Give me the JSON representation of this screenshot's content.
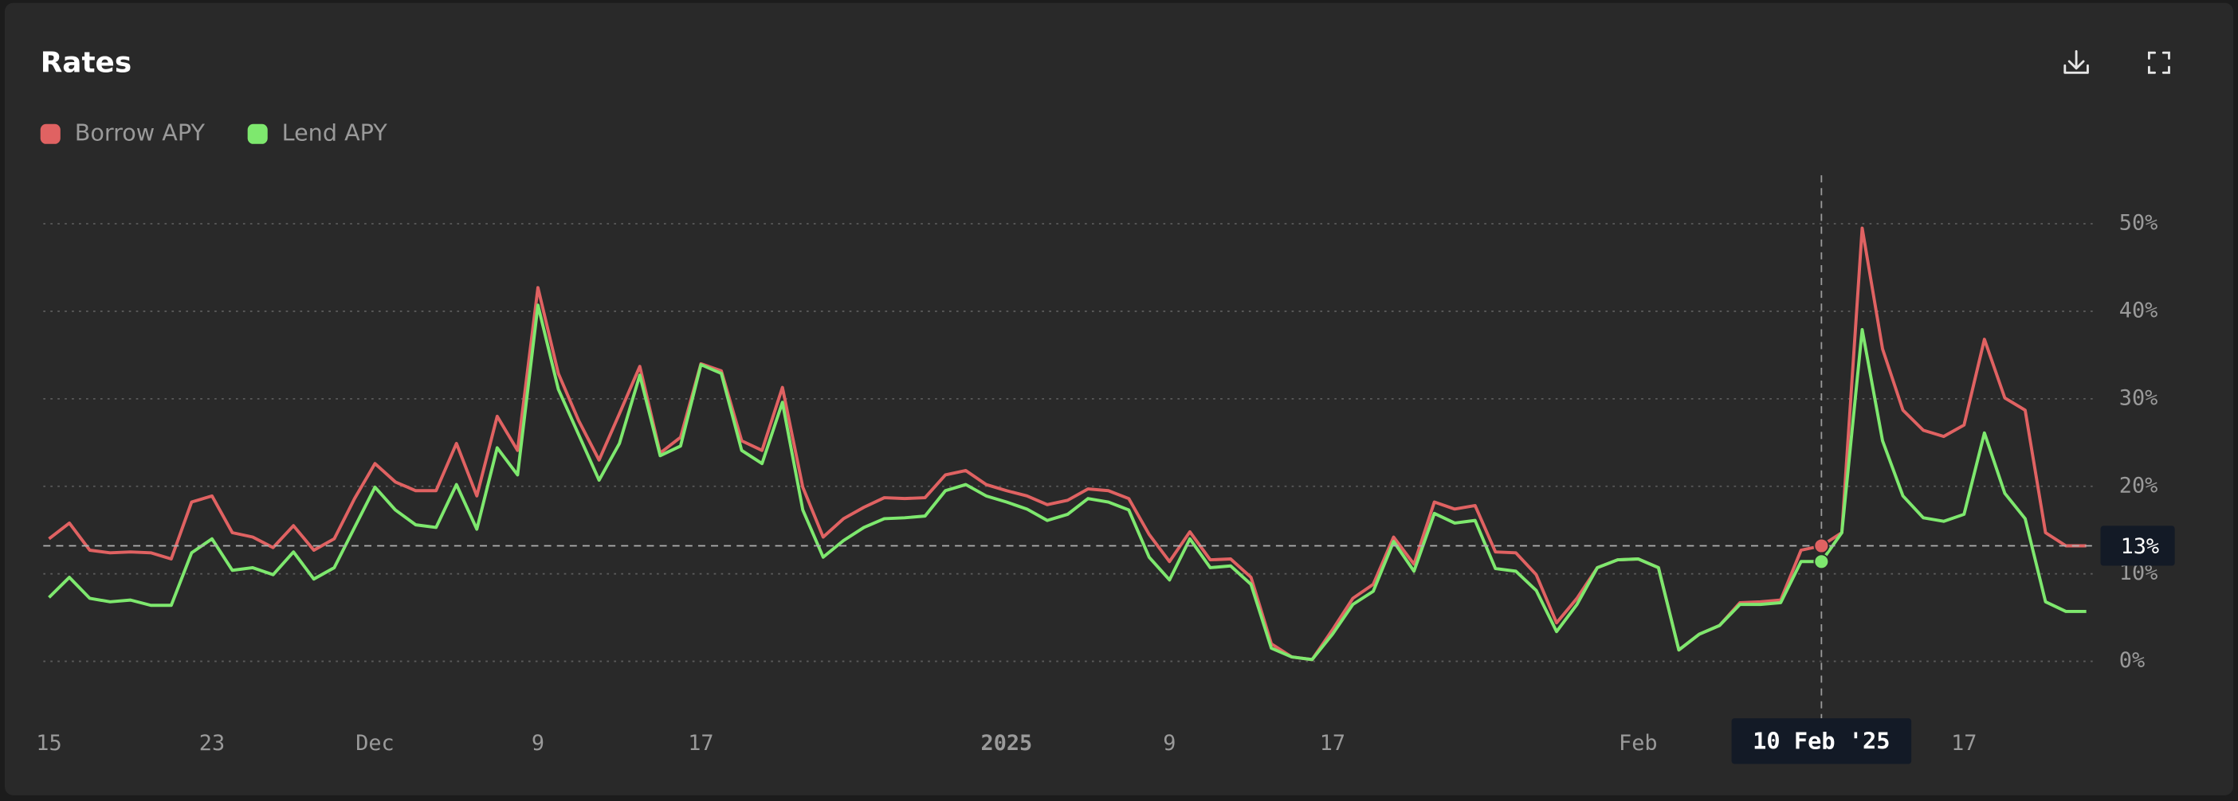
{
  "chart_data": {
    "type": "line",
    "title": "Rates",
    "x": [
      "2024-11-15",
      "2024-11-16",
      "2024-11-17",
      "2024-11-18",
      "2024-11-19",
      "2024-11-20",
      "2024-11-21",
      "2024-11-22",
      "2024-11-23",
      "2024-11-24",
      "2024-11-25",
      "2024-11-26",
      "2024-11-27",
      "2024-11-28",
      "2024-11-29",
      "2024-11-30",
      "2024-12-01",
      "2024-12-02",
      "2024-12-03",
      "2024-12-04",
      "2024-12-05",
      "2024-12-06",
      "2024-12-07",
      "2024-12-08",
      "2024-12-09",
      "2024-12-10",
      "2024-12-11",
      "2024-12-12",
      "2024-12-13",
      "2024-12-14",
      "2024-12-15",
      "2024-12-16",
      "2024-12-17",
      "2024-12-18",
      "2024-12-19",
      "2024-12-20",
      "2024-12-21",
      "2024-12-22",
      "2024-12-23",
      "2024-12-24",
      "2024-12-25",
      "2024-12-26",
      "2024-12-27",
      "2024-12-28",
      "2024-12-29",
      "2024-12-30",
      "2024-12-31",
      "2025-01-01",
      "2025-01-02",
      "2025-01-03",
      "2025-01-04",
      "2025-01-05",
      "2025-01-06",
      "2025-01-07",
      "2025-01-08",
      "2025-01-09",
      "2025-01-10",
      "2025-01-11",
      "2025-01-12",
      "2025-01-13",
      "2025-01-14",
      "2025-01-15",
      "2025-01-16",
      "2025-01-17",
      "2025-01-18",
      "2025-01-19",
      "2025-01-20",
      "2025-01-21",
      "2025-01-22",
      "2025-01-23",
      "2025-01-24",
      "2025-01-25",
      "2025-01-26",
      "2025-01-27",
      "2025-01-28",
      "2025-01-29",
      "2025-01-30",
      "2025-01-31",
      "2025-02-01",
      "2025-02-02",
      "2025-02-03",
      "2025-02-04",
      "2025-02-05",
      "2025-02-06",
      "2025-02-07",
      "2025-02-08",
      "2025-02-09",
      "2025-02-10",
      "2025-02-11",
      "2025-02-12",
      "2025-02-13",
      "2025-02-14",
      "2025-02-15",
      "2025-02-16",
      "2025-02-17",
      "2025-02-18",
      "2025-02-19",
      "2025-02-20",
      "2025-02-21",
      "2025-02-22",
      "2025-02-23"
    ],
    "series": [
      {
        "name": "Borrow APY",
        "color": "#e06262",
        "values": [
          14.0,
          15.8,
          12.7,
          12.4,
          12.5,
          12.4,
          11.7,
          18.2,
          18.9,
          14.7,
          14.2,
          13.0,
          15.5,
          12.7,
          14.0,
          18.6,
          22.6,
          20.5,
          19.5,
          19.5,
          24.9,
          18.9,
          28.0,
          24.1,
          42.7,
          32.9,
          27.5,
          23.0,
          28.3,
          33.7,
          23.8,
          25.6,
          34.0,
          33.2,
          25.2,
          24.1,
          31.3,
          19.9,
          14.2,
          16.3,
          17.6,
          18.7,
          18.6,
          18.7,
          21.3,
          21.8,
          20.2,
          19.5,
          18.9,
          17.9,
          18.4,
          19.7,
          19.5,
          18.6,
          14.5,
          11.4,
          14.8,
          11.6,
          11.7,
          9.6,
          2.0,
          0.5,
          0.2,
          3.6,
          7.2,
          8.8,
          14.2,
          11.1,
          18.2,
          17.4,
          17.8,
          12.5,
          12.4,
          9.9,
          4.4,
          7.2,
          10.7,
          11.6,
          11.7,
          10.7,
          1.3,
          3.1,
          4.1,
          6.7,
          6.8,
          7.0,
          12.7,
          13.2,
          14.7,
          49.5,
          35.7,
          28.7,
          26.4,
          25.7,
          27.0,
          36.8,
          30.1,
          28.7,
          14.7,
          13.2,
          13.2
        ]
      },
      {
        "name": "Lend APY",
        "color": "#7ee86e",
        "values": [
          7.3,
          9.6,
          7.2,
          6.8,
          7.0,
          6.4,
          6.4,
          12.4,
          14.0,
          10.4,
          10.7,
          9.9,
          12.5,
          9.4,
          10.7,
          15.3,
          19.9,
          17.3,
          15.6,
          15.3,
          20.2,
          15.1,
          24.4,
          21.3,
          40.7,
          31.1,
          25.9,
          20.7,
          24.9,
          32.7,
          23.5,
          24.6,
          33.9,
          32.9,
          24.1,
          22.6,
          29.6,
          17.3,
          11.9,
          13.8,
          15.3,
          16.3,
          16.4,
          16.6,
          19.5,
          20.2,
          18.9,
          18.2,
          17.4,
          16.1,
          16.8,
          18.6,
          18.2,
          17.3,
          11.9,
          9.3,
          14.0,
          10.7,
          10.9,
          8.8,
          1.5,
          0.5,
          0.2,
          3.1,
          6.5,
          8.0,
          13.7,
          10.3,
          16.9,
          15.8,
          16.1,
          10.6,
          10.3,
          8.1,
          3.4,
          6.5,
          10.7,
          11.6,
          11.7,
          10.7,
          1.3,
          3.1,
          4.1,
          6.5,
          6.5,
          6.7,
          11.4,
          11.4,
          14.7,
          37.9,
          25.2,
          18.9,
          16.4,
          16.0,
          16.8,
          26.1,
          19.2,
          16.3,
          6.8,
          5.7,
          5.7
        ]
      }
    ],
    "xlim": [
      "2024-11-15",
      "2025-02-23"
    ],
    "xticks": [
      {
        "value": "2024-11-15",
        "label": "15"
      },
      {
        "value": "2024-11-23",
        "label": "23"
      },
      {
        "value": "2024-12-01",
        "label": "Dec"
      },
      {
        "value": "2024-12-09",
        "label": "9"
      },
      {
        "value": "2024-12-17",
        "label": "17"
      },
      {
        "value": "2025-01-01",
        "label": "2025"
      },
      {
        "value": "2025-01-09",
        "label": "9"
      },
      {
        "value": "2025-01-17",
        "label": "17"
      },
      {
        "value": "2025-02-01",
        "label": "Feb"
      },
      {
        "value": "2025-02-17",
        "label": "17"
      }
    ],
    "ylim": [
      0,
      50
    ],
    "yticks": [
      {
        "value": 0,
        "label": "0%"
      },
      {
        "value": 10,
        "label": "10%"
      },
      {
        "value": 20,
        "label": "20%"
      },
      {
        "value": 30,
        "label": "30%"
      },
      {
        "value": 40,
        "label": "40%"
      },
      {
        "value": 50,
        "label": "50%"
      }
    ],
    "grid": true,
    "legend": "top-left",
    "crosshair": {
      "x": {
        "value": "2025-02-10",
        "label": "10 Feb '25"
      },
      "y": {
        "value": 13.2,
        "label": "13%"
      }
    }
  }
}
